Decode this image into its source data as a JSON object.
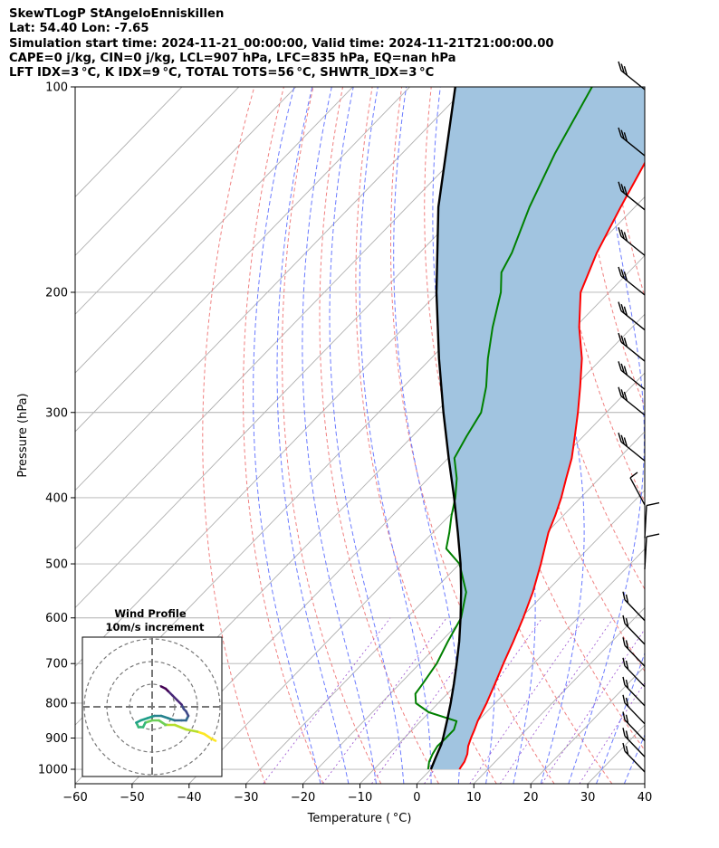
{
  "header": {
    "line1": "SkewTLogP StAngeloEnniskillen",
    "line2": "Lat: 54.40   Lon: -7.65",
    "line3": "Simulation start time: 2024-11-21_00:00:00, Valid time: 2024-11-21T21:00:00.00",
    "line4": "CAPE=0 j/kg, CIN=0 j/kg, LCL=907 hPa, LFC=835 hPa, EQ=nan hPa",
    "line5": "LFT IDX=3 °C, K IDX=9 °C, TOTAL TOTS=56 °C, SHWTR_IDX=3 °C"
  },
  "chart_data": {
    "type": "line",
    "chart_kind": "skew-T log-P",
    "xlabel": "Temperature ( °C)",
    "ylabel": "Pressure (hPa)",
    "xlim": [
      -60,
      40
    ],
    "ylim": [
      1050,
      100
    ],
    "y_scale": "log",
    "x_ticks": [
      "−60",
      "−50",
      "−40",
      "−30",
      "−20",
      "−10",
      "0",
      "10",
      "20",
      "30",
      "40"
    ],
    "x_tick_values": [
      -60,
      -50,
      -40,
      -30,
      -20,
      -10,
      0,
      10,
      20,
      30,
      40
    ],
    "y_ticks": [
      "1000",
      "900",
      "800",
      "700",
      "600",
      "500",
      "400",
      "300",
      "200",
      "100"
    ],
    "y_tick_values": [
      1000,
      900,
      800,
      700,
      600,
      500,
      400,
      300,
      200,
      100
    ],
    "grid": true,
    "colors": {
      "temperature": "#ff0000",
      "dewpoint": "#008000",
      "parcel": "#000000",
      "cape_fill": "#a1c4e0",
      "dry_adiabats": "#f08080",
      "moist_adiabats": "#6b7bff",
      "mixing_ratio": "#9a4fd0",
      "isotherms": "#b0b0b0"
    },
    "series": [
      {
        "role": "temperature",
        "points": [
          [
            1000,
            5.0
          ],
          [
            975,
            4.6
          ],
          [
            950,
            3.8
          ],
          [
            925,
            2.6
          ],
          [
            900,
            1.7
          ],
          [
            875,
            0.9
          ],
          [
            850,
            0.0
          ],
          [
            800,
            -1.5
          ],
          [
            750,
            -3.3
          ],
          [
            700,
            -5.3
          ],
          [
            650,
            -7.3
          ],
          [
            600,
            -9.6
          ],
          [
            550,
            -12.3
          ],
          [
            500,
            -15.7
          ],
          [
            450,
            -19.7
          ],
          [
            425,
            -21.4
          ],
          [
            400,
            -23.4
          ],
          [
            375,
            -25.8
          ],
          [
            350,
            -28.3
          ],
          [
            325,
            -31.5
          ],
          [
            300,
            -35.0
          ],
          [
            275,
            -39.0
          ],
          [
            250,
            -43.5
          ],
          [
            225,
            -49.3
          ],
          [
            200,
            -55.0
          ],
          [
            175,
            -58.9
          ],
          [
            150,
            -62.5
          ],
          [
            125,
            -66.5
          ],
          [
            100,
            -71.5
          ]
        ]
      },
      {
        "role": "dewpoint",
        "points": [
          [
            1000,
            -0.5
          ],
          [
            975,
            -1.6
          ],
          [
            950,
            -2.3
          ],
          [
            925,
            -2.8
          ],
          [
            900,
            -2.7
          ],
          [
            875,
            -2.7
          ],
          [
            850,
            -3.7
          ],
          [
            825,
            -10.1
          ],
          [
            800,
            -13.9
          ],
          [
            775,
            -15.6
          ],
          [
            750,
            -16.0
          ],
          [
            700,
            -17.0
          ],
          [
            650,
            -18.8
          ],
          [
            600,
            -20.5
          ],
          [
            550,
            -24.0
          ],
          [
            500,
            -30.0
          ],
          [
            475,
            -34.9
          ],
          [
            450,
            -37.1
          ],
          [
            425,
            -39.6
          ],
          [
            400,
            -42.0
          ],
          [
            375,
            -45.0
          ],
          [
            350,
            -48.9
          ],
          [
            325,
            -50.5
          ],
          [
            300,
            -52.0
          ],
          [
            275,
            -55.5
          ],
          [
            250,
            -60.0
          ],
          [
            225,
            -64.5
          ],
          [
            200,
            -69.0
          ],
          [
            187,
            -72.3
          ],
          [
            175,
            -73.8
          ],
          [
            150,
            -78.5
          ],
          [
            125,
            -83.2
          ],
          [
            100,
            -88.0
          ]
        ]
      },
      {
        "role": "parcel",
        "points": [
          [
            1000,
            0.0
          ],
          [
            960,
            -1.2
          ],
          [
            920,
            -2.4
          ],
          [
            907,
            -2.9
          ],
          [
            850,
            -5.4
          ],
          [
            800,
            -7.8
          ],
          [
            750,
            -10.5
          ],
          [
            700,
            -13.5
          ],
          [
            650,
            -16.8
          ],
          [
            600,
            -20.6
          ],
          [
            550,
            -24.9
          ],
          [
            500,
            -29.8
          ],
          [
            450,
            -35.6
          ],
          [
            400,
            -42.2
          ],
          [
            350,
            -49.9
          ],
          [
            300,
            -58.6
          ],
          [
            250,
            -68.6
          ],
          [
            200,
            -80.3
          ],
          [
            150,
            -94.5
          ],
          [
            100,
            -112.0
          ]
        ]
      }
    ],
    "wind_barbs_pressure": [
      100,
      125,
      150,
      175,
      200,
      225,
      250,
      275,
      300,
      350,
      400,
      450,
      500,
      600,
      650,
      700,
      750,
      800,
      850,
      900,
      950,
      1000
    ],
    "hodograph": {
      "title": "Wind Profile",
      "subtitle": "10m/s increment",
      "points": [
        [
          28,
          -15
        ],
        [
          26,
          -14
        ],
        [
          23,
          -12
        ],
        [
          20,
          -11
        ],
        [
          15,
          -10
        ],
        [
          10,
          -8
        ],
        [
          6,
          -8
        ],
        [
          3,
          -6
        ],
        [
          0,
          -6
        ],
        [
          -3,
          -7
        ],
        [
          -4,
          -9
        ],
        [
          -6,
          -9
        ],
        [
          -7,
          -7
        ],
        [
          -5,
          -6
        ],
        [
          -2,
          -5
        ],
        [
          1,
          -4
        ],
        [
          4,
          -4
        ],
        [
          7,
          -5
        ],
        [
          10,
          -6
        ],
        [
          13,
          -6
        ],
        [
          15,
          -6
        ],
        [
          16,
          -4
        ],
        [
          15,
          -2
        ],
        [
          14,
          -1
        ],
        [
          13,
          1
        ],
        [
          11,
          3
        ],
        [
          9,
          5
        ],
        [
          7,
          7
        ],
        [
          6,
          8
        ],
        [
          4,
          9
        ]
      ]
    }
  }
}
